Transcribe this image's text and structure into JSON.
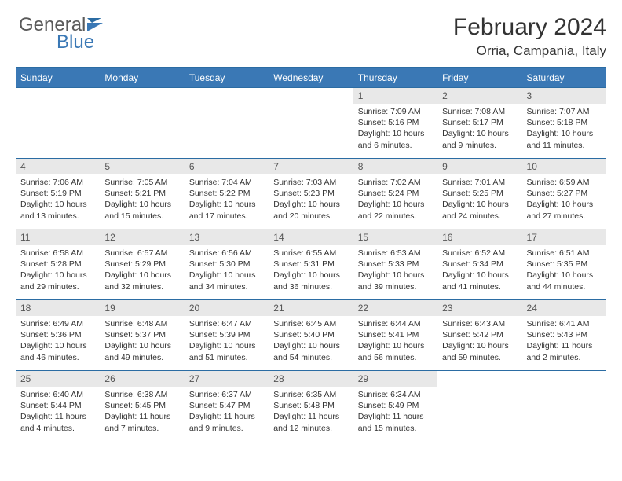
{
  "brand": {
    "general": "General",
    "blue": "Blue"
  },
  "header": {
    "title": "February 2024",
    "location": "Orria, Campania, Italy"
  },
  "theme": {
    "header_bg": "#3a78b5",
    "header_text": "#ffffff",
    "border_color": "#2b6ca3",
    "daynum_bg": "#e8e8e8",
    "text_color": "#333333",
    "daynum_fontsize": 12,
    "content_fontsize": 10.5
  },
  "weekdays": [
    "Sunday",
    "Monday",
    "Tuesday",
    "Wednesday",
    "Thursday",
    "Friday",
    "Saturday"
  ],
  "weeks": [
    [
      null,
      null,
      null,
      null,
      {
        "n": "1",
        "sunrise": "Sunrise: 7:09 AM",
        "sunset": "Sunset: 5:16 PM",
        "daylight": "Daylight: 10 hours and 6 minutes."
      },
      {
        "n": "2",
        "sunrise": "Sunrise: 7:08 AM",
        "sunset": "Sunset: 5:17 PM",
        "daylight": "Daylight: 10 hours and 9 minutes."
      },
      {
        "n": "3",
        "sunrise": "Sunrise: 7:07 AM",
        "sunset": "Sunset: 5:18 PM",
        "daylight": "Daylight: 10 hours and 11 minutes."
      }
    ],
    [
      {
        "n": "4",
        "sunrise": "Sunrise: 7:06 AM",
        "sunset": "Sunset: 5:19 PM",
        "daylight": "Daylight: 10 hours and 13 minutes."
      },
      {
        "n": "5",
        "sunrise": "Sunrise: 7:05 AM",
        "sunset": "Sunset: 5:21 PM",
        "daylight": "Daylight: 10 hours and 15 minutes."
      },
      {
        "n": "6",
        "sunrise": "Sunrise: 7:04 AM",
        "sunset": "Sunset: 5:22 PM",
        "daylight": "Daylight: 10 hours and 17 minutes."
      },
      {
        "n": "7",
        "sunrise": "Sunrise: 7:03 AM",
        "sunset": "Sunset: 5:23 PM",
        "daylight": "Daylight: 10 hours and 20 minutes."
      },
      {
        "n": "8",
        "sunrise": "Sunrise: 7:02 AM",
        "sunset": "Sunset: 5:24 PM",
        "daylight": "Daylight: 10 hours and 22 minutes."
      },
      {
        "n": "9",
        "sunrise": "Sunrise: 7:01 AM",
        "sunset": "Sunset: 5:25 PM",
        "daylight": "Daylight: 10 hours and 24 minutes."
      },
      {
        "n": "10",
        "sunrise": "Sunrise: 6:59 AM",
        "sunset": "Sunset: 5:27 PM",
        "daylight": "Daylight: 10 hours and 27 minutes."
      }
    ],
    [
      {
        "n": "11",
        "sunrise": "Sunrise: 6:58 AM",
        "sunset": "Sunset: 5:28 PM",
        "daylight": "Daylight: 10 hours and 29 minutes."
      },
      {
        "n": "12",
        "sunrise": "Sunrise: 6:57 AM",
        "sunset": "Sunset: 5:29 PM",
        "daylight": "Daylight: 10 hours and 32 minutes."
      },
      {
        "n": "13",
        "sunrise": "Sunrise: 6:56 AM",
        "sunset": "Sunset: 5:30 PM",
        "daylight": "Daylight: 10 hours and 34 minutes."
      },
      {
        "n": "14",
        "sunrise": "Sunrise: 6:55 AM",
        "sunset": "Sunset: 5:31 PM",
        "daylight": "Daylight: 10 hours and 36 minutes."
      },
      {
        "n": "15",
        "sunrise": "Sunrise: 6:53 AM",
        "sunset": "Sunset: 5:33 PM",
        "daylight": "Daylight: 10 hours and 39 minutes."
      },
      {
        "n": "16",
        "sunrise": "Sunrise: 6:52 AM",
        "sunset": "Sunset: 5:34 PM",
        "daylight": "Daylight: 10 hours and 41 minutes."
      },
      {
        "n": "17",
        "sunrise": "Sunrise: 6:51 AM",
        "sunset": "Sunset: 5:35 PM",
        "daylight": "Daylight: 10 hours and 44 minutes."
      }
    ],
    [
      {
        "n": "18",
        "sunrise": "Sunrise: 6:49 AM",
        "sunset": "Sunset: 5:36 PM",
        "daylight": "Daylight: 10 hours and 46 minutes."
      },
      {
        "n": "19",
        "sunrise": "Sunrise: 6:48 AM",
        "sunset": "Sunset: 5:37 PM",
        "daylight": "Daylight: 10 hours and 49 minutes."
      },
      {
        "n": "20",
        "sunrise": "Sunrise: 6:47 AM",
        "sunset": "Sunset: 5:39 PM",
        "daylight": "Daylight: 10 hours and 51 minutes."
      },
      {
        "n": "21",
        "sunrise": "Sunrise: 6:45 AM",
        "sunset": "Sunset: 5:40 PM",
        "daylight": "Daylight: 10 hours and 54 minutes."
      },
      {
        "n": "22",
        "sunrise": "Sunrise: 6:44 AM",
        "sunset": "Sunset: 5:41 PM",
        "daylight": "Daylight: 10 hours and 56 minutes."
      },
      {
        "n": "23",
        "sunrise": "Sunrise: 6:43 AM",
        "sunset": "Sunset: 5:42 PM",
        "daylight": "Daylight: 10 hours and 59 minutes."
      },
      {
        "n": "24",
        "sunrise": "Sunrise: 6:41 AM",
        "sunset": "Sunset: 5:43 PM",
        "daylight": "Daylight: 11 hours and 2 minutes."
      }
    ],
    [
      {
        "n": "25",
        "sunrise": "Sunrise: 6:40 AM",
        "sunset": "Sunset: 5:44 PM",
        "daylight": "Daylight: 11 hours and 4 minutes."
      },
      {
        "n": "26",
        "sunrise": "Sunrise: 6:38 AM",
        "sunset": "Sunset: 5:45 PM",
        "daylight": "Daylight: 11 hours and 7 minutes."
      },
      {
        "n": "27",
        "sunrise": "Sunrise: 6:37 AM",
        "sunset": "Sunset: 5:47 PM",
        "daylight": "Daylight: 11 hours and 9 minutes."
      },
      {
        "n": "28",
        "sunrise": "Sunrise: 6:35 AM",
        "sunset": "Sunset: 5:48 PM",
        "daylight": "Daylight: 11 hours and 12 minutes."
      },
      {
        "n": "29",
        "sunrise": "Sunrise: 6:34 AM",
        "sunset": "Sunset: 5:49 PM",
        "daylight": "Daylight: 11 hours and 15 minutes."
      },
      null,
      null
    ]
  ]
}
